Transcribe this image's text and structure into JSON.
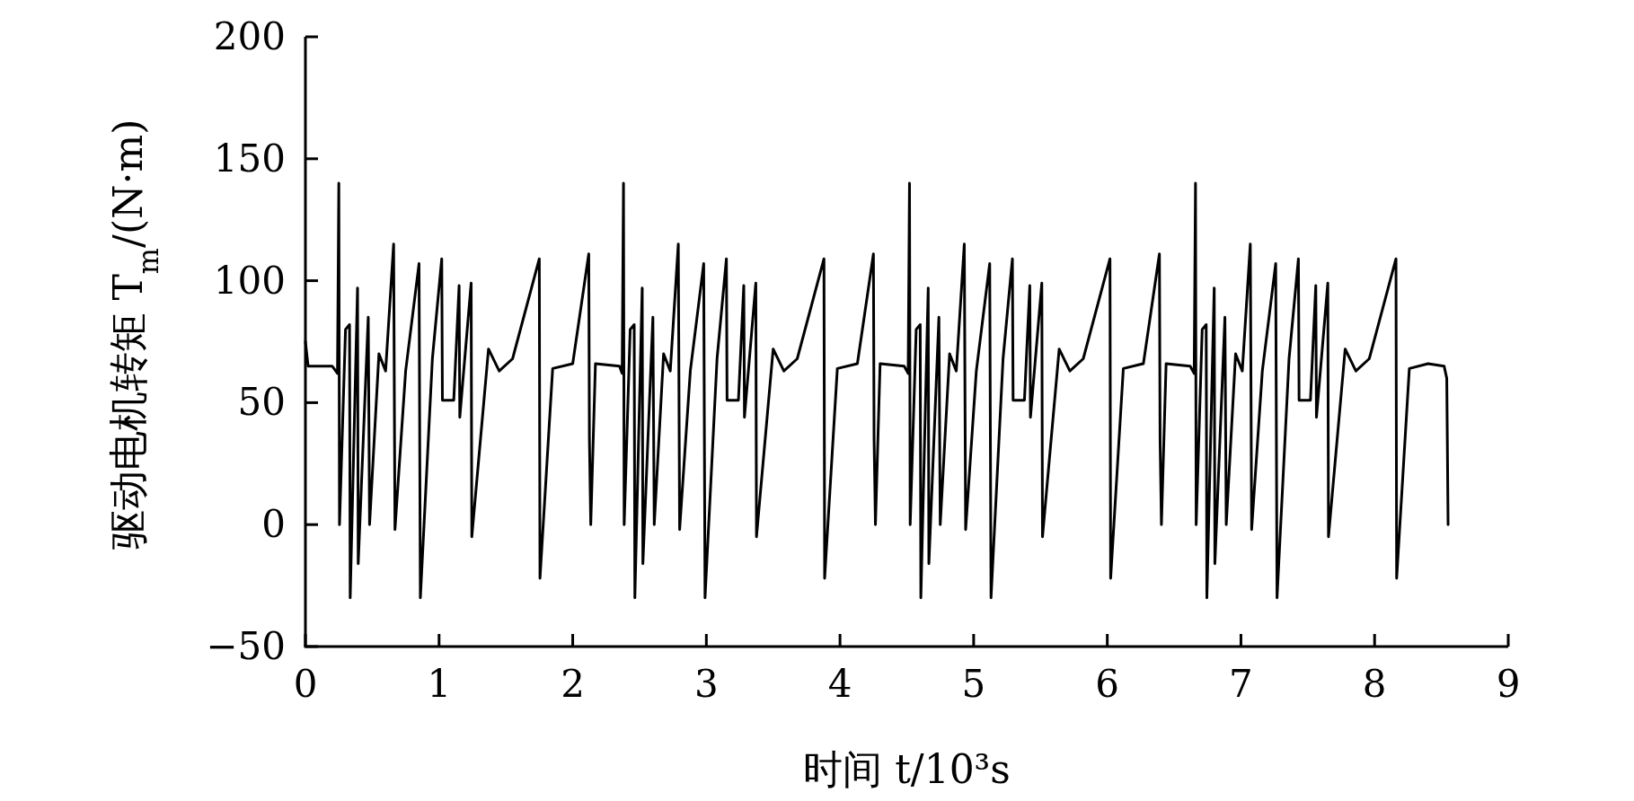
{
  "chart_data": {
    "type": "line",
    "xlabel": "时间 t/10³s",
    "ylabel": "驱动电机转矩 T$_{m}$/(N·m)",
    "xlim": [
      0,
      9
    ],
    "xticks": [
      0,
      1,
      2,
      3,
      4,
      5,
      6,
      7,
      8,
      9
    ],
    "ylim": [
      -50,
      200
    ],
    "yticks": [
      {
        "value": -50,
        "label": "−50"
      },
      0,
      50,
      100,
      150,
      200
    ],
    "grid": false,
    "marker": "none",
    "line_style": "solid",
    "series": [
      {
        "color": "#000000",
        "x": [
          0,
          0.02,
          0.2,
          0.24,
          0.25,
          0.255,
          0.3,
          0.33,
          0.335,
          0.39,
          0.395,
          0.47,
          0.48,
          0.55,
          0.6,
          0.66,
          0.67,
          0.75,
          0.85,
          0.86,
          0.95,
          1.02,
          1.025,
          1.11,
          1.15,
          1.155,
          1.24,
          1.245,
          1.37,
          1.45,
          1.55,
          1.75,
          1.755,
          1.85,
          2.0,
          2.12,
          2.125,
          2.135,
          2.17,
          2.35,
          2.37,
          2.38,
          2.385,
          2.43,
          2.46,
          2.465,
          2.52,
          2.525,
          2.6,
          2.61,
          2.68,
          2.73,
          2.79,
          2.8,
          2.88,
          2.98,
          2.99,
          3.08,
          3.15,
          3.155,
          3.24,
          3.28,
          3.285,
          3.37,
          3.375,
          3.5,
          3.58,
          3.68,
          3.88,
          3.885,
          3.98,
          4.13,
          4.25,
          4.255,
          4.265,
          4.3,
          4.48,
          4.51,
          4.52,
          4.525,
          4.57,
          4.6,
          4.605,
          4.66,
          4.665,
          4.74,
          4.75,
          4.82,
          4.87,
          4.93,
          4.94,
          5.02,
          5.12,
          5.13,
          5.22,
          5.29,
          5.295,
          5.38,
          5.42,
          5.425,
          5.51,
          5.515,
          5.64,
          5.72,
          5.82,
          6.02,
          6.025,
          6.12,
          6.27,
          6.39,
          6.395,
          6.405,
          6.44,
          6.62,
          6.65,
          6.66,
          6.665,
          6.71,
          6.74,
          6.745,
          6.8,
          6.805,
          6.88,
          6.89,
          6.96,
          7.01,
          7.07,
          7.08,
          7.16,
          7.26,
          7.27,
          7.36,
          7.43,
          7.435,
          7.52,
          7.56,
          7.565,
          7.65,
          7.655,
          7.78,
          7.86,
          7.96,
          8.16,
          8.165,
          8.26,
          8.4,
          8.52,
          8.54,
          8.55
        ],
        "values": [
          75,
          65,
          65,
          62,
          140,
          0,
          80,
          82,
          -30,
          97,
          -16,
          85,
          0,
          70,
          63,
          115,
          -2,
          63,
          107,
          -30,
          68,
          109,
          51,
          51,
          98,
          44,
          99,
          -5,
          72,
          63,
          68,
          109,
          -22,
          64,
          66,
          111,
          35,
          0,
          66,
          65,
          62,
          140,
          0,
          80,
          82,
          -30,
          97,
          -16,
          85,
          0,
          70,
          63,
          115,
          -2,
          63,
          107,
          -30,
          68,
          109,
          51,
          51,
          98,
          44,
          99,
          -5,
          72,
          63,
          68,
          109,
          -22,
          64,
          66,
          111,
          35,
          0,
          66,
          65,
          62,
          140,
          0,
          80,
          82,
          -30,
          97,
          -16,
          85,
          0,
          70,
          63,
          115,
          -2,
          63,
          107,
          -30,
          68,
          109,
          51,
          51,
          98,
          44,
          99,
          -5,
          72,
          63,
          68,
          109,
          -22,
          64,
          66,
          111,
          35,
          0,
          66,
          65,
          62,
          140,
          0,
          80,
          82,
          -30,
          97,
          -16,
          85,
          0,
          70,
          63,
          115,
          -2,
          63,
          107,
          -30,
          68,
          109,
          51,
          51,
          98,
          44,
          99,
          -5,
          72,
          63,
          68,
          109,
          -22,
          64,
          66,
          65,
          60,
          0
        ]
      }
    ]
  }
}
